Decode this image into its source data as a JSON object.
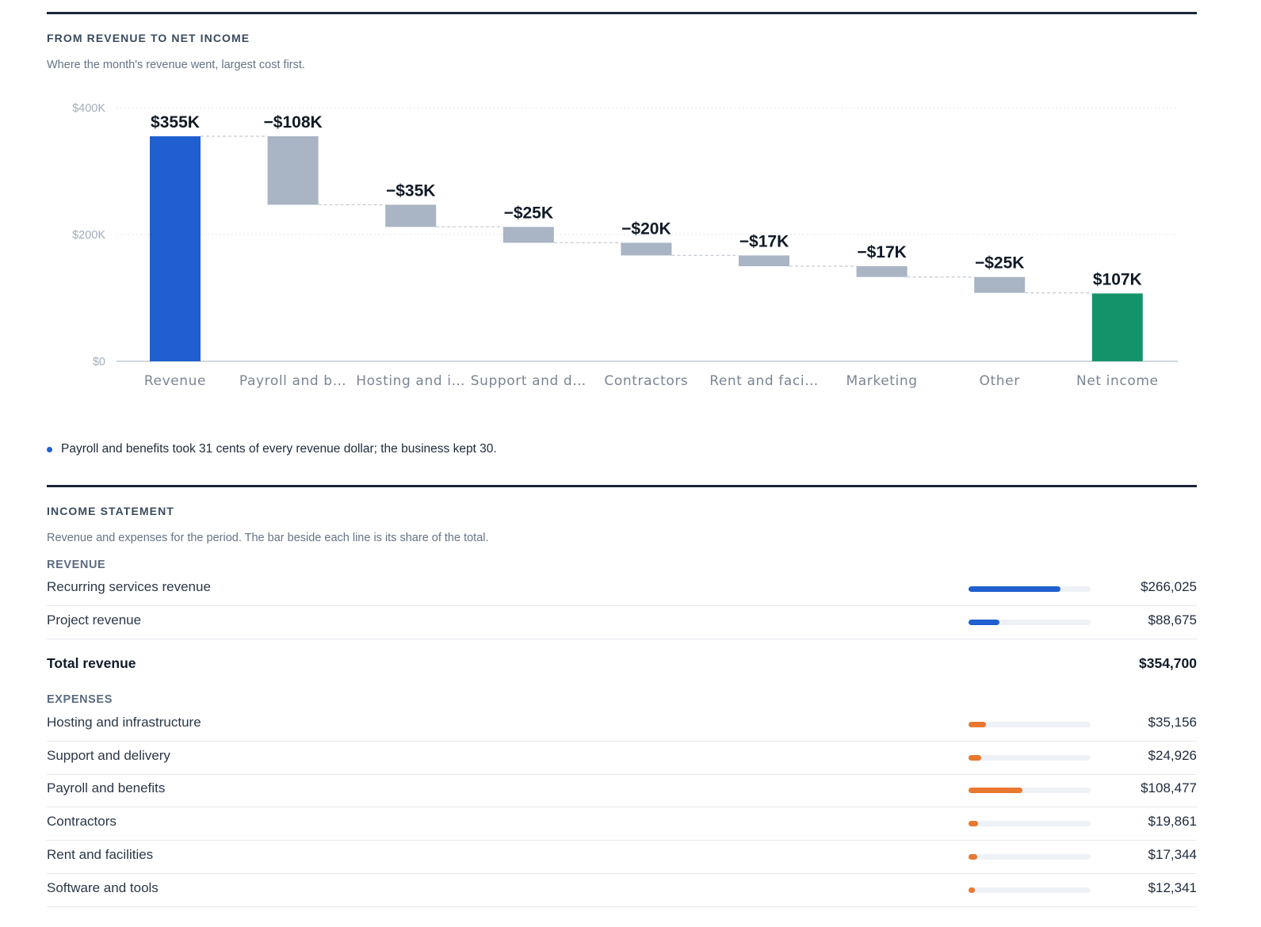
{
  "waterfall": {
    "title": "FROM REVENUE TO NET INCOME",
    "subtitle": "Where the month's revenue went, largest cost first.",
    "note": "Payroll and benefits took 31 cents of every revenue dollar; the business kept 30."
  },
  "chart_data": {
    "type": "bar",
    "subtype": "waterfall",
    "categories": [
      "Revenue",
      "Payroll and b…",
      "Hosting and i…",
      "Support and d…",
      "Contractors",
      "Rent and faci…",
      "Marketing",
      "Other",
      "Net income"
    ],
    "values": [
      355,
      -108,
      -35,
      -25,
      -20,
      -17,
      -17,
      -25,
      107
    ],
    "data_labels": [
      "$355K",
      "−$108K",
      "−$35K",
      "−$25K",
      "−$20K",
      "−$17K",
      "−$17K",
      "−$25K",
      "$107K"
    ],
    "kinds": [
      "total",
      "decrease",
      "decrease",
      "decrease",
      "decrease",
      "decrease",
      "decrease",
      "decrease",
      "total"
    ],
    "ylim": [
      0,
      400
    ],
    "y_ticks": [
      0,
      200,
      400
    ],
    "y_tick_labels": [
      "$0",
      "$200K",
      "$400K"
    ],
    "grid": true,
    "legend": "none",
    "colors": {
      "revenue": "#1f5fd0",
      "decrease": "#a9b4c4",
      "net": "#14936a",
      "connector": "#c3cad4",
      "grid": "#e3e7ed",
      "axis": "#c4cbd6"
    }
  },
  "income": {
    "title": "INCOME STATEMENT",
    "subtitle": "Revenue and expenses for the period. The bar beside each line is its share of the total.",
    "revenue_label": "REVENUE",
    "revenue_rows": [
      {
        "name": "Recurring services revenue",
        "amount": "$266,025",
        "share": 0.75
      },
      {
        "name": "Project revenue",
        "amount": "$88,675",
        "share": 0.25
      }
    ],
    "total_revenue": {
      "name": "Total revenue",
      "amount": "$354,700"
    },
    "expenses_label": "EXPENSES",
    "expense_rows": [
      {
        "name": "Hosting and infrastructure",
        "amount": "$35,156",
        "share": 0.142
      },
      {
        "name": "Support and delivery",
        "amount": "$24,926",
        "share": 0.101
      },
      {
        "name": "Payroll and benefits",
        "amount": "$108,477",
        "share": 0.44
      },
      {
        "name": "Contractors",
        "amount": "$19,861",
        "share": 0.081
      },
      {
        "name": "Rent and facilities",
        "amount": "$17,344",
        "share": 0.07
      },
      {
        "name": "Software and tools",
        "amount": "$12,341",
        "share": 0.05
      }
    ],
    "colors": {
      "revenue_bar": "#1f5fd0",
      "expense_bar": "#e8782f",
      "track": "#eef1f6"
    }
  }
}
